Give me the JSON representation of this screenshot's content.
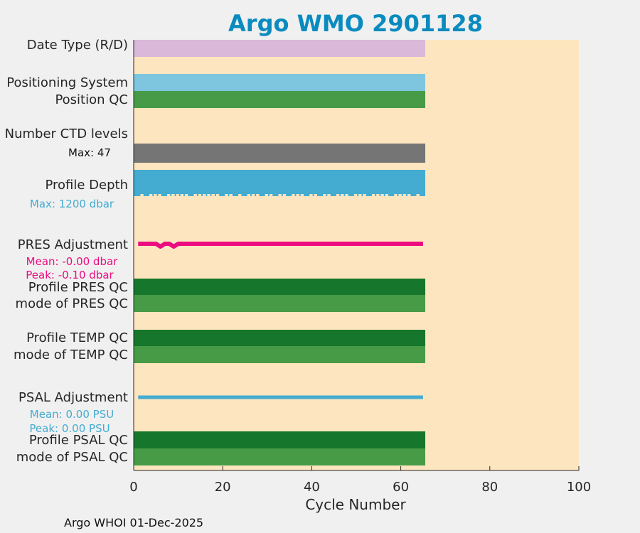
{
  "chart_data": {
    "type": "bar",
    "title": "Argo WMO 2901128",
    "xlabel": "Cycle Number",
    "xlim": [
      0,
      100
    ],
    "xticks": [
      0,
      20,
      40,
      60,
      80,
      100
    ],
    "footer": "Argo WHOI 01-Dec-2025",
    "cycles_max": 65,
    "rows": [
      {
        "label": "Date Type (R/D)",
        "color": "#d9b8da"
      },
      {
        "label": "Positioning System",
        "color": "#7ec5df"
      },
      {
        "label": "Position QC",
        "color": "#479b47"
      },
      {
        "label": "Number CTD levels",
        "note": "Max: 47",
        "color": "#757575"
      },
      {
        "label": "Profile Depth",
        "note": "Max: 1200 dbar",
        "color": "#44abd1"
      },
      {
        "label": "PRES Adjustment",
        "note": "Mean: -0.00 dbar",
        "note2": "Peak: -0.10 dbar",
        "color": "#ec0c80"
      },
      {
        "label": "Profile PRES QC",
        "color": "#16762c"
      },
      {
        "label": "mode of PRES QC",
        "color": "#479b47"
      },
      {
        "label": "Profile TEMP QC",
        "color": "#16762c"
      },
      {
        "label": "mode of TEMP QC",
        "color": "#479b47"
      },
      {
        "label": "PSAL Adjustment",
        "note": "Mean: 0.00 PSU",
        "note2": "Peak: 0.00 PSU",
        "color": "#44abd1"
      },
      {
        "label": "Profile PSAL QC",
        "color": "#16762c"
      },
      {
        "label": "mode of PSAL QC",
        "color": "#479b47"
      }
    ],
    "depth_gaps": [
      2,
      4,
      5,
      6,
      8,
      9,
      10,
      11,
      12,
      14,
      15,
      16,
      17,
      18,
      19,
      21,
      22,
      24,
      26,
      27,
      28,
      30,
      31,
      33,
      34,
      36,
      37,
      38,
      40,
      41,
      43,
      44,
      46,
      47,
      48,
      50,
      51,
      52,
      54,
      55,
      56,
      57,
      59,
      60,
      61,
      62,
      64
    ],
    "depth_max_dbar": 1200,
    "pres_adjustment": {
      "mean": -0.0,
      "peak": -0.1,
      "dip_cycles": [
        6,
        9
      ],
      "dip_value": -0.1
    },
    "psal_adjustment": {
      "mean": 0.0,
      "peak": 0.0
    },
    "accent_color": "#0a8bbf",
    "plot_bg": "#fde6bf"
  }
}
